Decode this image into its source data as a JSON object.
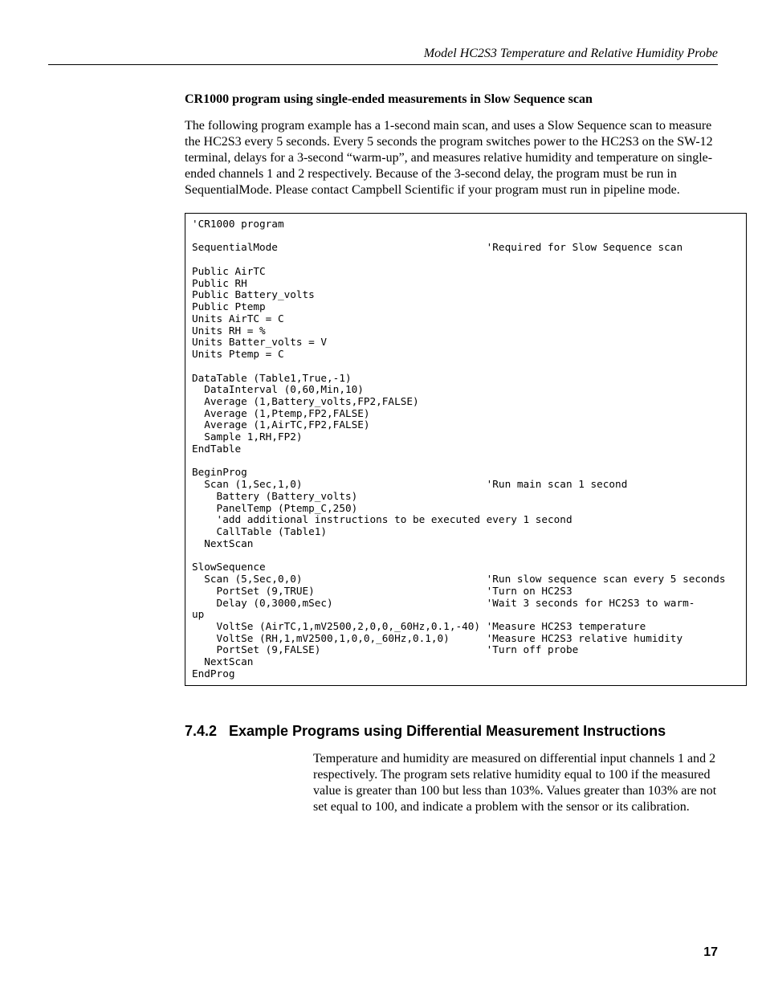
{
  "header": {
    "running_title": "Model HC2S3 Temperature and Relative Humidity Probe"
  },
  "intro": {
    "subtitle": "CR1000 program using single-ended measurements in Slow Sequence scan",
    "paragraph": "The following program example has a 1-second main scan, and uses a Slow Sequence scan to measure the HC2S3 every 5 seconds.  Every 5 seconds the program switches power to the HC2S3 on the SW-12 terminal, delays for a 3-second “warm-up”, and measures relative humidity and temperature on single-ended channels 1 and 2 respectively.  Because of the 3-second delay, the program must be run in SequentialMode.  Please contact Campbell Scientific if your program must run in pipeline mode."
  },
  "code": {
    "text": "'CR1000 program\n\nSequentialMode                                  'Required for Slow Sequence scan\n\nPublic AirTC\nPublic RH\nPublic Battery_volts\nPublic Ptemp\nUnits AirTC = C\nUnits RH = %\nUnits Batter_volts = V\nUnits Ptemp = C\n\nDataTable (Table1,True,-1)\n  DataInterval (0,60,Min,10)\n  Average (1,Battery_volts,FP2,FALSE)\n  Average (1,Ptemp,FP2,FALSE)\n  Average (1,AirTC,FP2,FALSE)\n  Sample 1,RH,FP2)\nEndTable\n\nBeginProg\n  Scan (1,Sec,1,0)                              'Run main scan 1 second\n    Battery (Battery_volts)\n    PanelTemp (Ptemp_C,250)\n    'add additional instructions to be executed every 1 second\n    CallTable (Table1)\n  NextScan\n\nSlowSequence\n  Scan (5,Sec,0,0)                              'Run slow sequence scan every 5 seconds\n    PortSet (9,TRUE)                            'Turn on HC2S3\n    Delay (0,3000,mSec)                         'Wait 3 seconds for HC2S3 to warm-\nup\n    VoltSe (AirTC,1,mV2500,2,0,0,_60Hz,0.1,-40) 'Measure HC2S3 temperature\n    VoltSe (RH,1,mV2500,1,0,0,_60Hz,0.1,0)      'Measure HC2S3 relative humidity\n    PortSet (9,FALSE)                           'Turn off probe\n  NextScan\nEndProg"
  },
  "section": {
    "number": "7.4.2",
    "title": "Example Programs using Differential Measurement Instructions",
    "paragraph": "Temperature and humidity are measured on differential input channels 1 and 2 respectively.  The program sets relative humidity equal to 100 if the measured value is greater than 100 but less than 103%.  Values greater than 103% are not set equal to 100, and indicate a problem with the sensor or its calibration."
  },
  "page_number": "17"
}
